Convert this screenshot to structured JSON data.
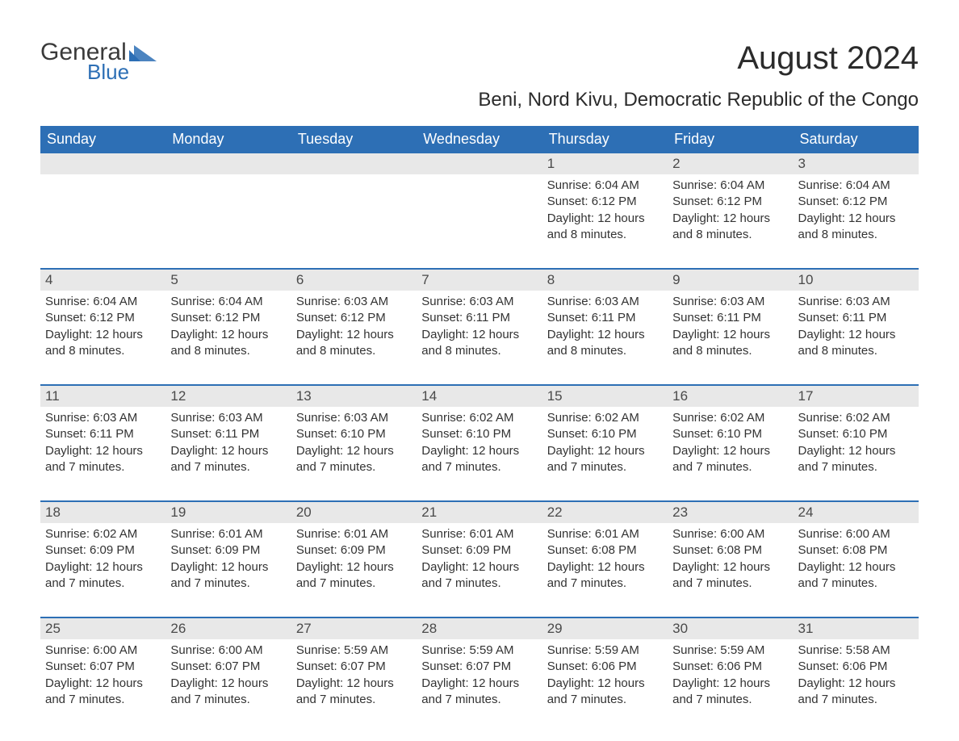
{
  "brand": {
    "part1": "General",
    "part2": "Blue"
  },
  "title": "August 2024",
  "subtitle": "Beni, Nord Kivu, Democratic Republic of the Congo",
  "colors": {
    "header_bg": "#2d6fb5",
    "header_text": "#ffffff",
    "daynum_bg": "#e8e8e8",
    "body_text": "#333333",
    "rule": "#2d6fb5",
    "page_bg": "#ffffff"
  },
  "typography": {
    "title_size_pt": 30,
    "subtitle_size_pt": 18,
    "dow_size_pt": 14,
    "body_size_pt": 11
  },
  "dow": [
    "Sunday",
    "Monday",
    "Tuesday",
    "Wednesday",
    "Thursday",
    "Friday",
    "Saturday"
  ],
  "weeks": [
    [
      {
        "n": "",
        "sr": "",
        "ss": "",
        "dl": ""
      },
      {
        "n": "",
        "sr": "",
        "ss": "",
        "dl": ""
      },
      {
        "n": "",
        "sr": "",
        "ss": "",
        "dl": ""
      },
      {
        "n": "",
        "sr": "",
        "ss": "",
        "dl": ""
      },
      {
        "n": "1",
        "sr": "Sunrise: 6:04 AM",
        "ss": "Sunset: 6:12 PM",
        "dl": "Daylight: 12 hours and 8 minutes."
      },
      {
        "n": "2",
        "sr": "Sunrise: 6:04 AM",
        "ss": "Sunset: 6:12 PM",
        "dl": "Daylight: 12 hours and 8 minutes."
      },
      {
        "n": "3",
        "sr": "Sunrise: 6:04 AM",
        "ss": "Sunset: 6:12 PM",
        "dl": "Daylight: 12 hours and 8 minutes."
      }
    ],
    [
      {
        "n": "4",
        "sr": "Sunrise: 6:04 AM",
        "ss": "Sunset: 6:12 PM",
        "dl": "Daylight: 12 hours and 8 minutes."
      },
      {
        "n": "5",
        "sr": "Sunrise: 6:04 AM",
        "ss": "Sunset: 6:12 PM",
        "dl": "Daylight: 12 hours and 8 minutes."
      },
      {
        "n": "6",
        "sr": "Sunrise: 6:03 AM",
        "ss": "Sunset: 6:12 PM",
        "dl": "Daylight: 12 hours and 8 minutes."
      },
      {
        "n": "7",
        "sr": "Sunrise: 6:03 AM",
        "ss": "Sunset: 6:11 PM",
        "dl": "Daylight: 12 hours and 8 minutes."
      },
      {
        "n": "8",
        "sr": "Sunrise: 6:03 AM",
        "ss": "Sunset: 6:11 PM",
        "dl": "Daylight: 12 hours and 8 minutes."
      },
      {
        "n": "9",
        "sr": "Sunrise: 6:03 AM",
        "ss": "Sunset: 6:11 PM",
        "dl": "Daylight: 12 hours and 8 minutes."
      },
      {
        "n": "10",
        "sr": "Sunrise: 6:03 AM",
        "ss": "Sunset: 6:11 PM",
        "dl": "Daylight: 12 hours and 8 minutes."
      }
    ],
    [
      {
        "n": "11",
        "sr": "Sunrise: 6:03 AM",
        "ss": "Sunset: 6:11 PM",
        "dl": "Daylight: 12 hours and 7 minutes."
      },
      {
        "n": "12",
        "sr": "Sunrise: 6:03 AM",
        "ss": "Sunset: 6:11 PM",
        "dl": "Daylight: 12 hours and 7 minutes."
      },
      {
        "n": "13",
        "sr": "Sunrise: 6:03 AM",
        "ss": "Sunset: 6:10 PM",
        "dl": "Daylight: 12 hours and 7 minutes."
      },
      {
        "n": "14",
        "sr": "Sunrise: 6:02 AM",
        "ss": "Sunset: 6:10 PM",
        "dl": "Daylight: 12 hours and 7 minutes."
      },
      {
        "n": "15",
        "sr": "Sunrise: 6:02 AM",
        "ss": "Sunset: 6:10 PM",
        "dl": "Daylight: 12 hours and 7 minutes."
      },
      {
        "n": "16",
        "sr": "Sunrise: 6:02 AM",
        "ss": "Sunset: 6:10 PM",
        "dl": "Daylight: 12 hours and 7 minutes."
      },
      {
        "n": "17",
        "sr": "Sunrise: 6:02 AM",
        "ss": "Sunset: 6:10 PM",
        "dl": "Daylight: 12 hours and 7 minutes."
      }
    ],
    [
      {
        "n": "18",
        "sr": "Sunrise: 6:02 AM",
        "ss": "Sunset: 6:09 PM",
        "dl": "Daylight: 12 hours and 7 minutes."
      },
      {
        "n": "19",
        "sr": "Sunrise: 6:01 AM",
        "ss": "Sunset: 6:09 PM",
        "dl": "Daylight: 12 hours and 7 minutes."
      },
      {
        "n": "20",
        "sr": "Sunrise: 6:01 AM",
        "ss": "Sunset: 6:09 PM",
        "dl": "Daylight: 12 hours and 7 minutes."
      },
      {
        "n": "21",
        "sr": "Sunrise: 6:01 AM",
        "ss": "Sunset: 6:09 PM",
        "dl": "Daylight: 12 hours and 7 minutes."
      },
      {
        "n": "22",
        "sr": "Sunrise: 6:01 AM",
        "ss": "Sunset: 6:08 PM",
        "dl": "Daylight: 12 hours and 7 minutes."
      },
      {
        "n": "23",
        "sr": "Sunrise: 6:00 AM",
        "ss": "Sunset: 6:08 PM",
        "dl": "Daylight: 12 hours and 7 minutes."
      },
      {
        "n": "24",
        "sr": "Sunrise: 6:00 AM",
        "ss": "Sunset: 6:08 PM",
        "dl": "Daylight: 12 hours and 7 minutes."
      }
    ],
    [
      {
        "n": "25",
        "sr": "Sunrise: 6:00 AM",
        "ss": "Sunset: 6:07 PM",
        "dl": "Daylight: 12 hours and 7 minutes."
      },
      {
        "n": "26",
        "sr": "Sunrise: 6:00 AM",
        "ss": "Sunset: 6:07 PM",
        "dl": "Daylight: 12 hours and 7 minutes."
      },
      {
        "n": "27",
        "sr": "Sunrise: 5:59 AM",
        "ss": "Sunset: 6:07 PM",
        "dl": "Daylight: 12 hours and 7 minutes."
      },
      {
        "n": "28",
        "sr": "Sunrise: 5:59 AM",
        "ss": "Sunset: 6:07 PM",
        "dl": "Daylight: 12 hours and 7 minutes."
      },
      {
        "n": "29",
        "sr": "Sunrise: 5:59 AM",
        "ss": "Sunset: 6:06 PM",
        "dl": "Daylight: 12 hours and 7 minutes."
      },
      {
        "n": "30",
        "sr": "Sunrise: 5:59 AM",
        "ss": "Sunset: 6:06 PM",
        "dl": "Daylight: 12 hours and 7 minutes."
      },
      {
        "n": "31",
        "sr": "Sunrise: 5:58 AM",
        "ss": "Sunset: 6:06 PM",
        "dl": "Daylight: 12 hours and 7 minutes."
      }
    ]
  ]
}
